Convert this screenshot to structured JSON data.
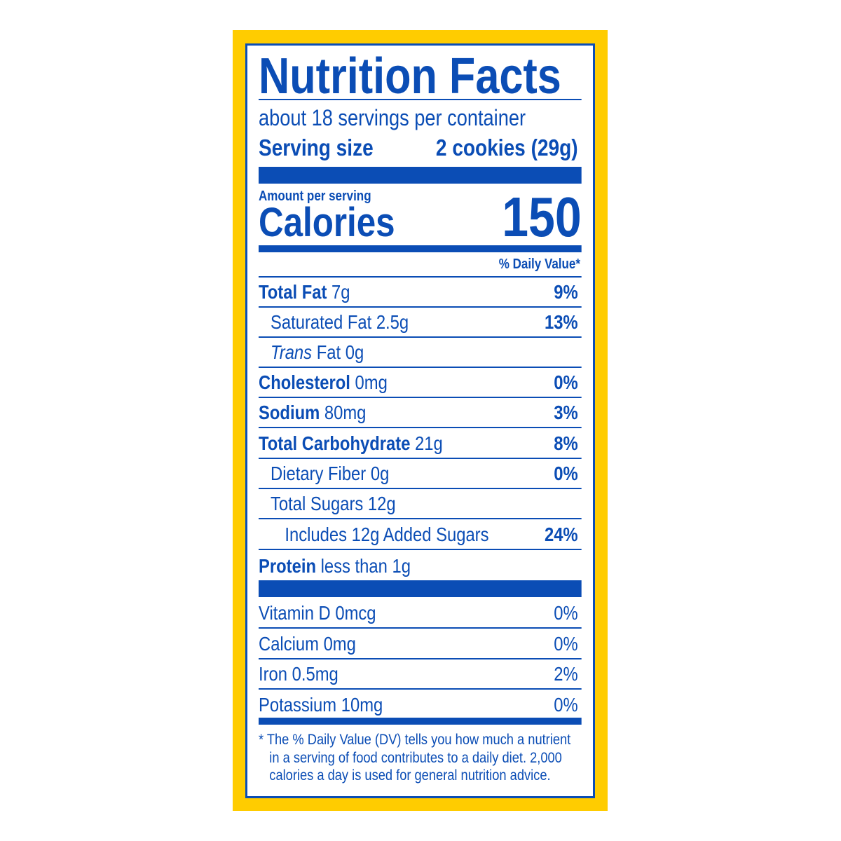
{
  "title": "Nutrition Facts",
  "servings_per_container": "about 18 servings per container",
  "serving_size_label": "Serving size",
  "serving_size_value": "2 cookies (29g)",
  "amount_per_serving": "Amount per serving",
  "calories_label": "Calories",
  "calories_value": "150",
  "daily_value_header": "% Daily Value*",
  "nutrients": [
    {
      "name": "Total Fat",
      "amount": "7g",
      "dv": "9%"
    },
    {
      "name": "Saturated Fat",
      "amount": "2.5g",
      "dv": "13%"
    },
    {
      "name": "Trans",
      "name2": "Fat",
      "amount": "0g",
      "dv": ""
    },
    {
      "name": "Cholesterol",
      "amount": "0mg",
      "dv": "0%"
    },
    {
      "name": "Sodium",
      "amount": "80mg",
      "dv": "3%"
    },
    {
      "name": "Total Carbohydrate",
      "amount": "21g",
      "dv": "8%"
    },
    {
      "name": "Dietary Fiber",
      "amount": "0g",
      "dv": "0%"
    },
    {
      "name": "Total Sugars",
      "amount": "12g",
      "dv": ""
    },
    {
      "name": "Includes 12g Added Sugars",
      "amount": "",
      "dv": "24%"
    },
    {
      "name": "Protein",
      "amount": "less than 1g",
      "dv": ""
    }
  ],
  "vitamins": [
    {
      "name": "Vitamin D 0mcg",
      "dv": "0%"
    },
    {
      "name": "Calcium 0mg",
      "dv": "0%"
    },
    {
      "name": "Iron 0.5mg",
      "dv": "2%"
    },
    {
      "name": "Potassium 10mg",
      "dv": "0%"
    }
  ],
  "footnote": [
    "* The % Daily Value (DV) tells you how much a nutrient",
    "in a serving of food contributes to a daily diet. 2,000",
    "calories a day is used for general nutrition advice."
  ],
  "colors": {
    "text": "#0b4db5",
    "frame": "#ffcc00"
  }
}
